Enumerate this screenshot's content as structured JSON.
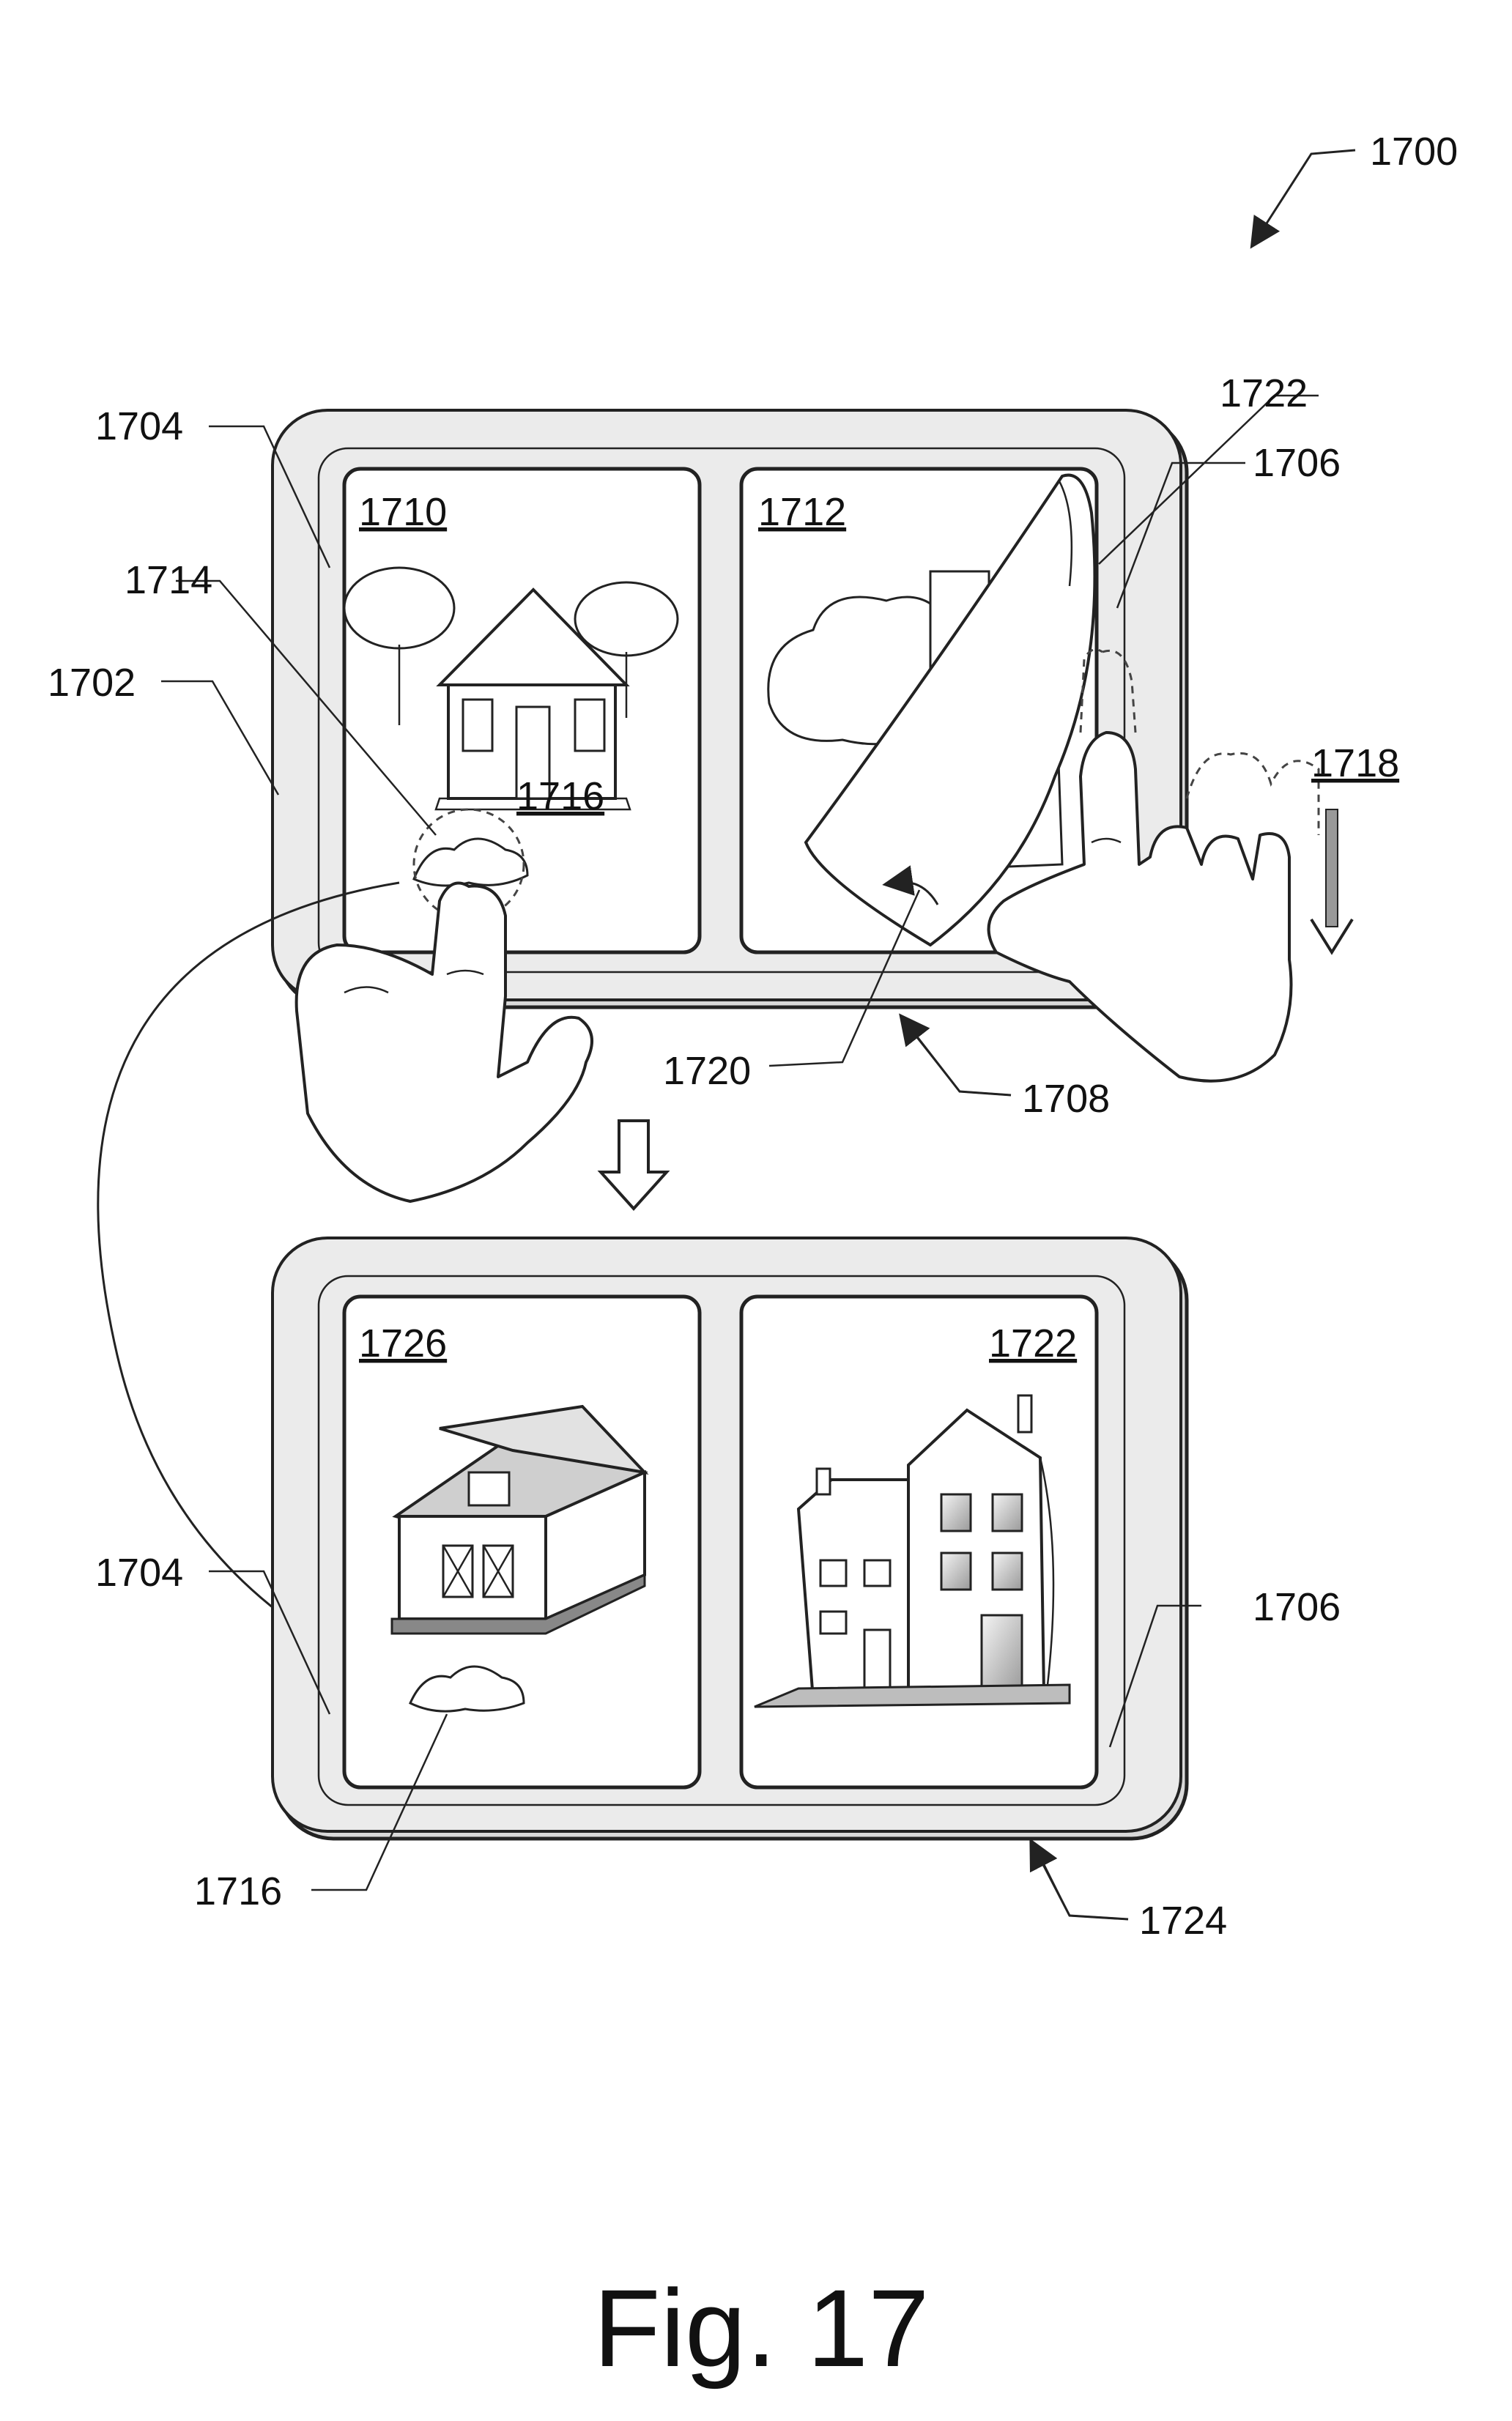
{
  "figure": {
    "ref_1700": "1700",
    "ref_1702": "1702",
    "ref_1704_top": "1704",
    "ref_1706_top": "1706",
    "ref_1708": "1708",
    "ref_1710": "1710",
    "ref_1712": "1712",
    "ref_1714": "1714",
    "ref_1716_top": "1716",
    "ref_1718": "1718",
    "ref_1720": "1720",
    "ref_1722_top": "1722",
    "ref_1704_bottom": "1704",
    "ref_1706_bottom": "1706",
    "ref_1716_bottom": "1716",
    "ref_1722_bottom": "1722",
    "ref_1724": "1724",
    "ref_1726": "1726",
    "caption": "Fig. 17"
  }
}
